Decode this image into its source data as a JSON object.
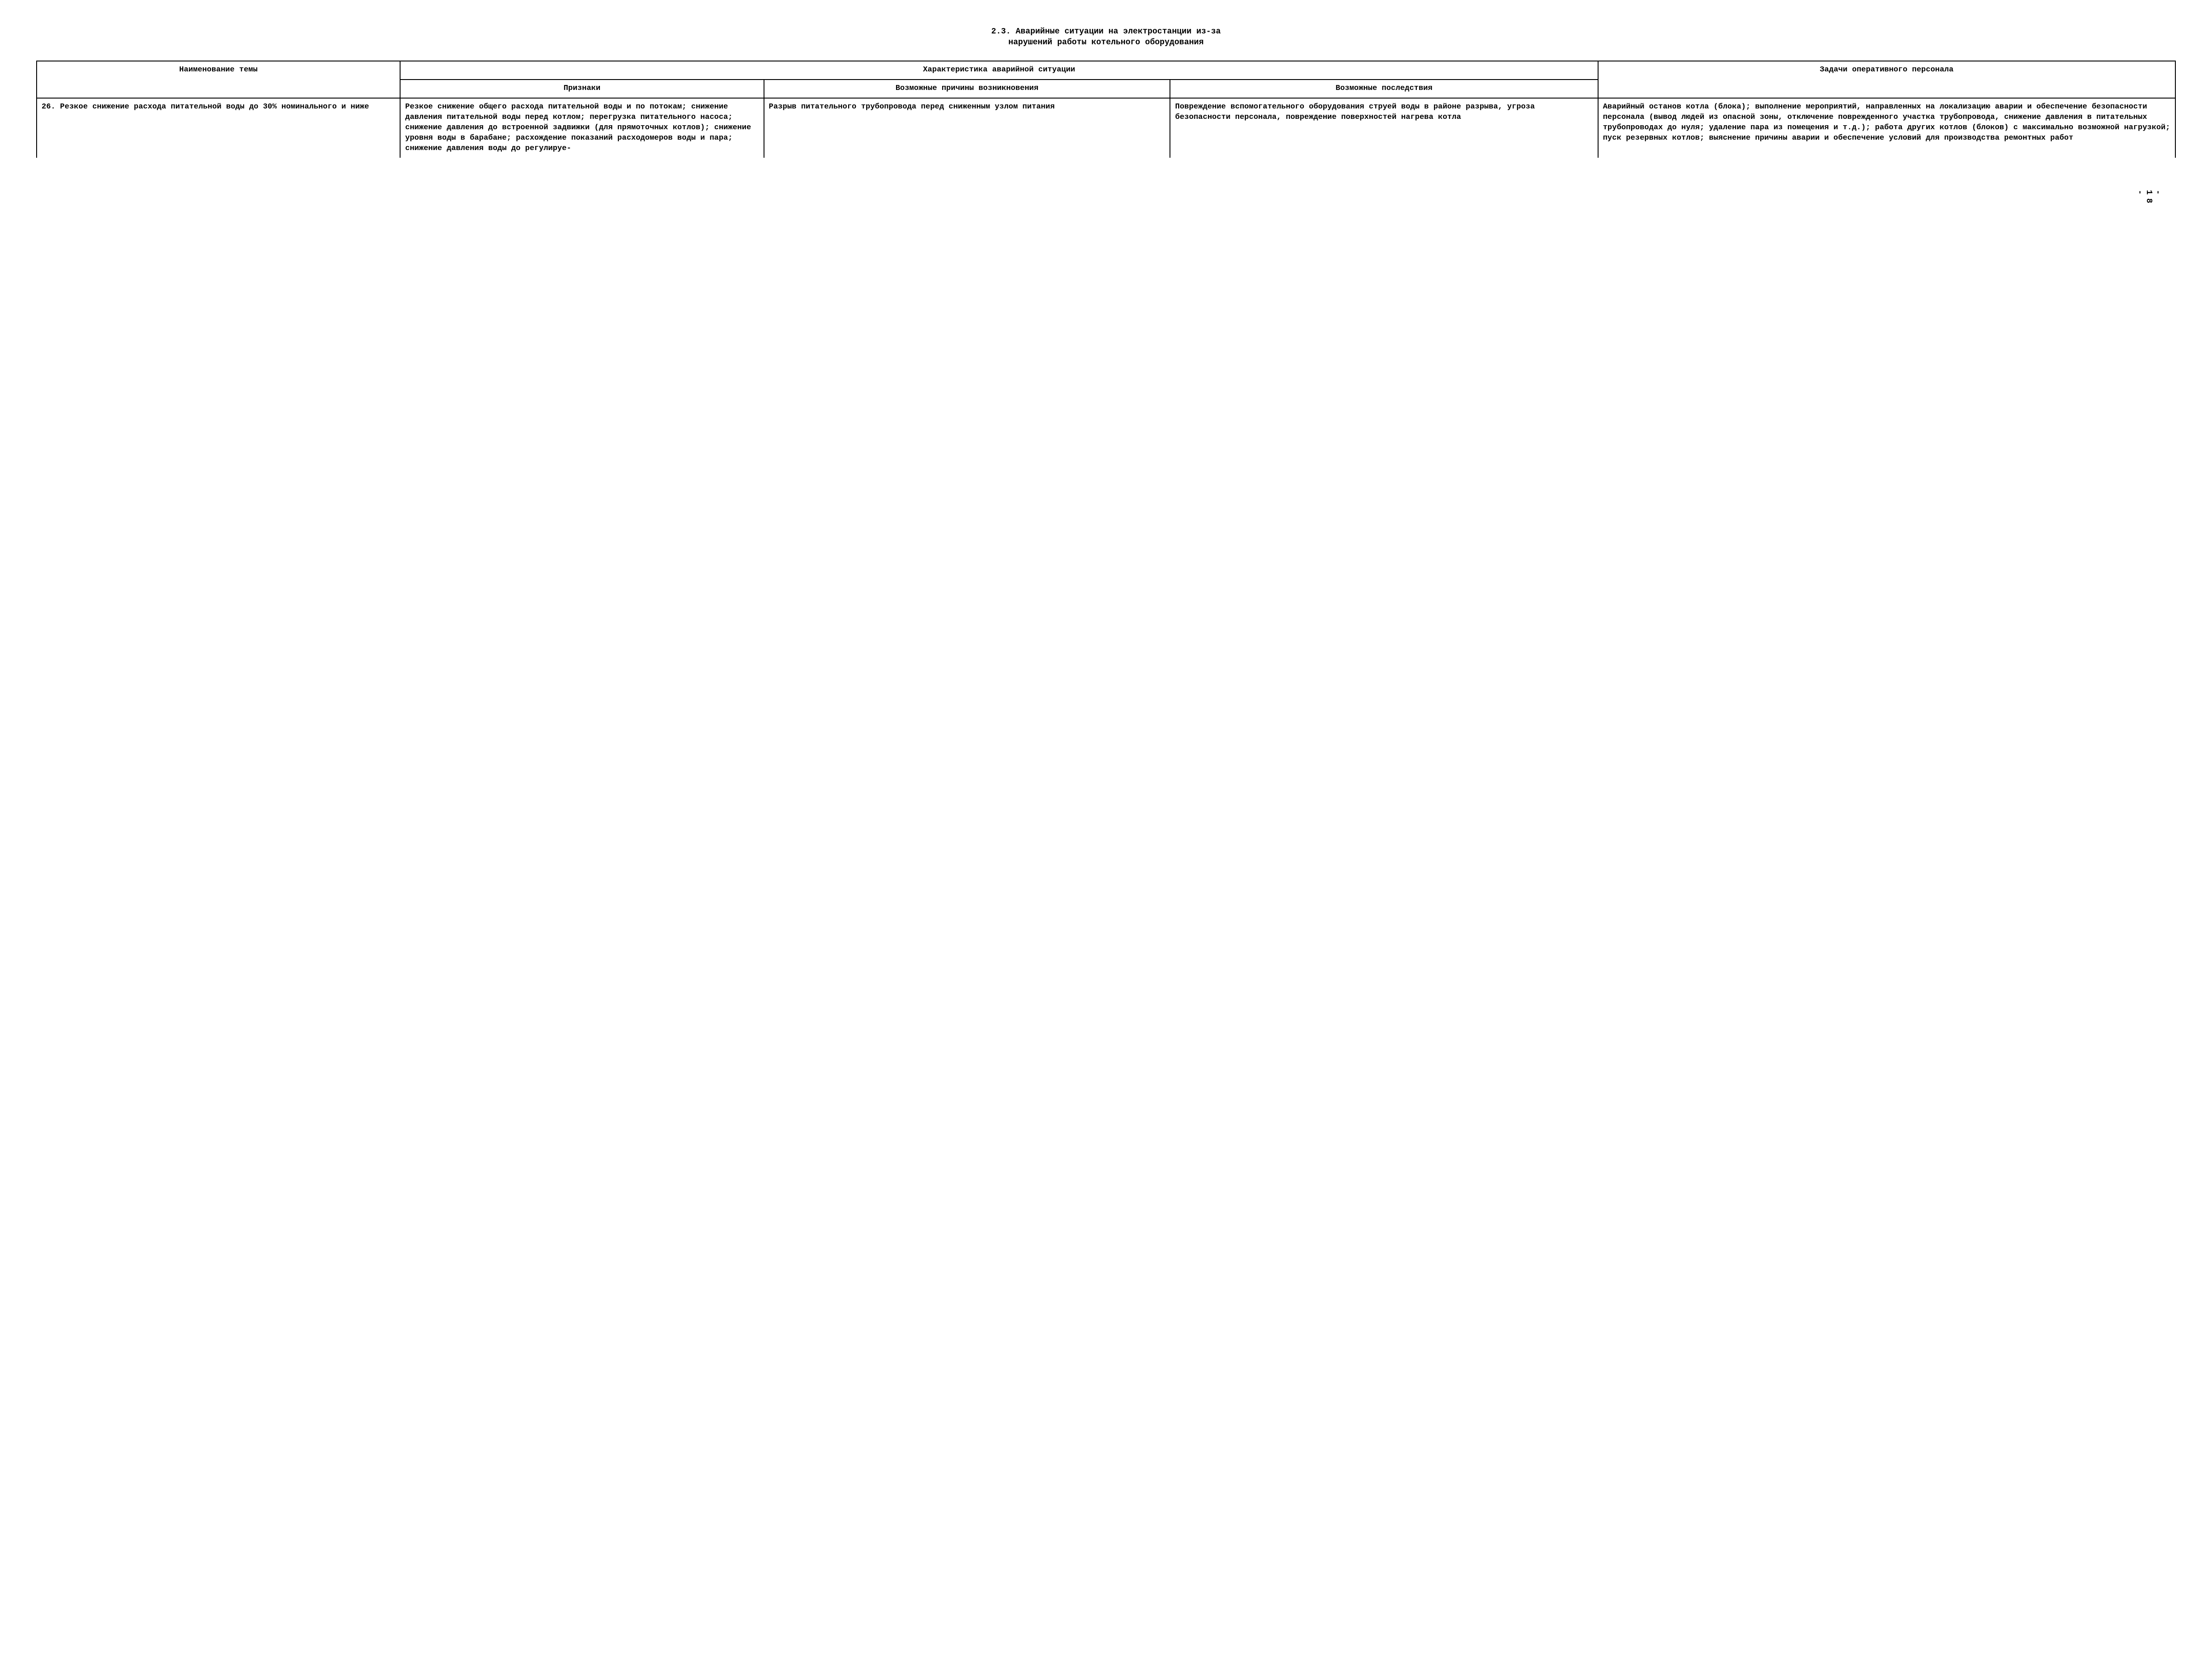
{
  "heading": {
    "line1": "2.3. Аварийные ситуации на электростанции из-за",
    "line2": "нарушений работы котельного оборудования"
  },
  "page_number": "- 18 -",
  "columns": {
    "col1": "Наименование темы",
    "col2_group": "Характеристика аварийной ситуации",
    "col2a": "Признаки",
    "col2b": "Возможные причины возникновения",
    "col2c": "Возможные последствия",
    "col3": "Задачи оперативного персонала"
  },
  "row": {
    "c1": "26. Резкое сни­жение расхода питательной во­ды до 30% номи­нального и ниже",
    "c2": "Резкое сниже­ние общего рас­хода питатель­ной воды и по потокам; сниже­ние давления питательной воды перед котлом; пере­грузка пита­тельного на­соса; сниже­ние давления до встроенной задвижки (для прямоточных котлов); сни­жение уровня воды в бара­бане; расхож­дение показа­ний расходо­меров воды и пара; снижение давления воды до регулируе-",
    "c3": "Разрыв питатель­ного трубопрово­да перед снижен­ным узлом пита­ния",
    "c4": "Повреждение вспо­могательного обо­рудования струей воды в районе разрыва, угроза безопасности персонала, пов­реждение поверх­ностей нагрева котла",
    "c5": "Аварийный останов котла (блока); вы­полнение мероприя­тий, направленных на локализацию ава­рии и обеспечение безопасности персона­ла (вывод людей из опасной зоны, отк­лючение поврежден­ного участка трубо­провода, снижение давления в питатель­ных трубопроводах до нуля; удаление пара из помещения и т.д.); работа дру­гих котлов (блоков) с максимально воз­можной нагрузкой; пуск резервных кот­лов; выяснение при­чины аварии и обес­печение условий для производства ремонт­ных работ"
  },
  "styling": {
    "font_family": "Courier New",
    "font_weight": "bold",
    "text_color": "#000000",
    "background_color": "#ffffff",
    "border_color": "#000000",
    "border_width": 2,
    "body_fontsize": 17,
    "title_fontsize": 18,
    "line_height": 1.35
  }
}
